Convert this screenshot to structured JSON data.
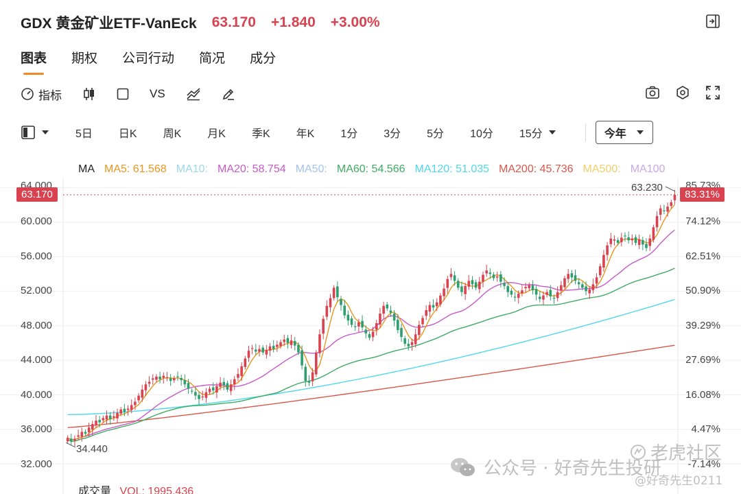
{
  "header": {
    "title": "GDX 黄金矿业ETF-VanEck",
    "price": "63.170",
    "change": "+1.840",
    "change_pct": "+3.00%"
  },
  "tabs": [
    {
      "label": "图表"
    },
    {
      "label": "期权"
    },
    {
      "label": "公司行动"
    },
    {
      "label": "简况"
    },
    {
      "label": "成分"
    }
  ],
  "toolbar": {
    "indicator_label": "指标",
    "vs_label": "VS"
  },
  "periods": [
    "5日",
    "日K",
    "周K",
    "月K",
    "季K",
    "年K",
    "1分",
    "3分",
    "5分",
    "10分"
  ],
  "period_dropdown": "15分",
  "range_select": "今年",
  "legend": {
    "ma": "MA",
    "ma5": "MA5: 61.568",
    "ma10": "MA10:",
    "ma20": "MA20: 58.754",
    "ma50": "MA50:",
    "ma60": "MA60: 54.566",
    "ma120": "MA120: 51.035",
    "ma200": "MA200: 45.736",
    "ma500": "MA500:",
    "ma100": "MA100"
  },
  "colors": {
    "up": "#d9424f",
    "down": "#2e9e6e",
    "ma5": "#e8961f",
    "ma10": "#9bd7ea",
    "ma20": "#c65ac9",
    "ma50": "#a3c4ee",
    "ma60": "#3fab63",
    "ma120": "#4fd8ea",
    "ma200": "#d9574a",
    "ma500": "#f1cf6a",
    "ma100": "#c8a9e6"
  },
  "price_tag": "63.170",
  "pct_tag": "83.31%",
  "high_label": "63.230",
  "low_label": "34.440",
  "y_axis": {
    "labels": [
      "64.000",
      "60.000",
      "56.000",
      "52.000",
      "48.000",
      "44.000",
      "40.000",
      "36.000",
      "32.000"
    ],
    "values": [
      64,
      60,
      56,
      52,
      48,
      44,
      40,
      36,
      32
    ]
  },
  "pct_axis": [
    "85.73%",
    "74.12%",
    "62.51%",
    "50.90%",
    "39.29%",
    "27.69%",
    "16.08%",
    "4.47%",
    "-7.14%"
  ],
  "volume": {
    "label": "成交量",
    "value": "VOL: 1995.436"
  },
  "watermark": {
    "account": "公众号 · 好奇先生投研",
    "community": "老虎社区",
    "handle": "@好奇先生0211"
  },
  "chart_data": {
    "type": "candlestick",
    "y_range": [
      32,
      64.5
    ],
    "closes": [
      35.0,
      34.6,
      34.9,
      35.3,
      35.7,
      35.5,
      36.2,
      36.6,
      37.0,
      36.8,
      37.3,
      37.6,
      37.2,
      37.5,
      37.9,
      38.3,
      38.0,
      38.4,
      38.8,
      39.2,
      39.9,
      40.6,
      41.2,
      41.5,
      41.9,
      42.1,
      41.8,
      42.2,
      42.0,
      41.6,
      41.9,
      42.1,
      41.7,
      41.2,
      40.7,
      40.4,
      39.9,
      39.5,
      39.8,
      40.3,
      40.7,
      40.5,
      41.0,
      41.4,
      41.1,
      40.6,
      41.2,
      41.8,
      42.4,
      43.3,
      44.2,
      45.1,
      45.4,
      45.0,
      45.3,
      44.9,
      45.2,
      45.6,
      45.3,
      45.8,
      46.1,
      46.4,
      46.0,
      46.3,
      45.7,
      44.9,
      43.4,
      41.6,
      41.4,
      42.6,
      44.9,
      47.0,
      48.8,
      50.3,
      51.2,
      52.4,
      51.3,
      50.4,
      49.2,
      48.6,
      48.1,
      47.9,
      48.4,
      47.8,
      47.1,
      46.6,
      47.3,
      48.3,
      49.4,
      50.3,
      50.0,
      49.5,
      48.6,
      47.5,
      46.7,
      45.9,
      45.6,
      46.1,
      47.0,
      48.1,
      48.9,
      49.8,
      50.4,
      50.1,
      50.7,
      51.5,
      52.3,
      53.4,
      54.0,
      53.2,
      52.4,
      51.9,
      52.6,
      53.2,
      52.8,
      52.4,
      53.1,
      53.9,
      54.4,
      54.0,
      53.5,
      53.7,
      53.1,
      52.6,
      51.9,
      51.6,
      51.3,
      51.7,
      52.1,
      52.5,
      52.7,
      52.1,
      51.6,
      51.1,
      51.5,
      51.9,
      51.4,
      51.2,
      51.9,
      52.7,
      53.5,
      54.0,
      53.6,
      53.2,
      52.8,
      52.4,
      52.0,
      52.2,
      52.8,
      53.6,
      54.9,
      56.2,
      57.3,
      58.1,
      58.0,
      57.6,
      58.2,
      58.4,
      57.9,
      58.1,
      57.6,
      58.0,
      57.4,
      57.0,
      58.1,
      59.4,
      60.7,
      61.6,
      61.3,
      61.8,
      62.3,
      63.17
    ]
  }
}
